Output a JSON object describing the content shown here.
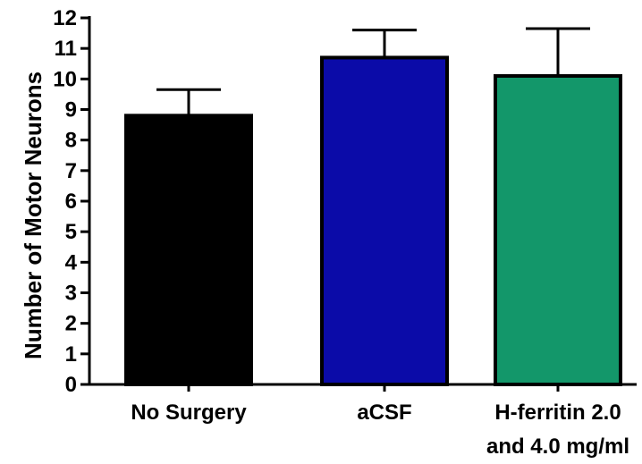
{
  "chart_data": {
    "type": "bar",
    "title": "",
    "xlabel": "",
    "ylabel": "Number of  Motor Neurons",
    "ylim": [
      0,
      12
    ],
    "yticks": [
      "0",
      "1",
      "2",
      "3",
      "4",
      "5",
      "6",
      "7",
      "8",
      "9",
      "10",
      "11",
      "12"
    ],
    "categories": [
      {
        "lines": [
          "No Surgery"
        ]
      },
      {
        "lines": [
          "aCSF"
        ]
      },
      {
        "lines": [
          "H-ferritin 2.0",
          "and 4.0 mg/ml"
        ]
      }
    ],
    "values": [
      8.8,
      10.7,
      10.1
    ],
    "errors": [
      0.85,
      0.9,
      1.55
    ],
    "colors": [
      "#000000",
      "#0b0ba8",
      "#13976a"
    ],
    "grid": false,
    "legend": "none"
  }
}
